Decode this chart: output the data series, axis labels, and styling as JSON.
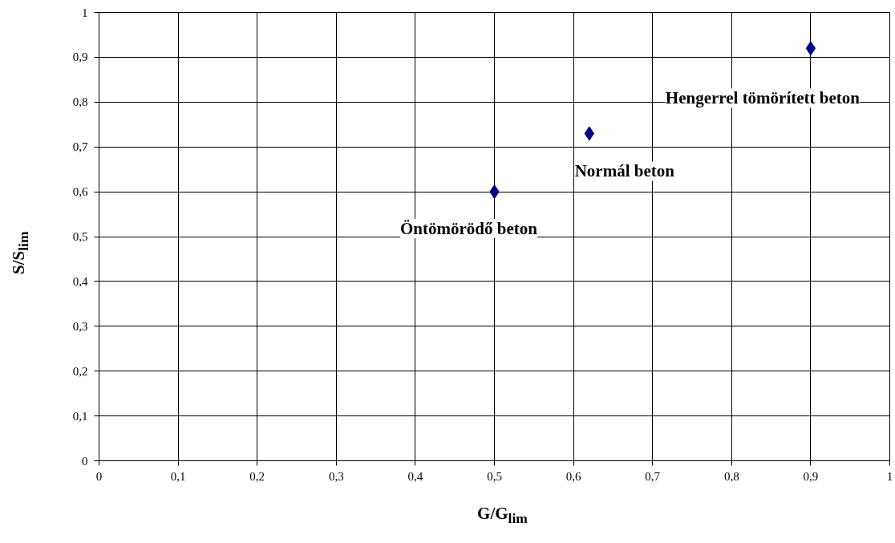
{
  "chart_data": {
    "type": "scatter",
    "xlabel": "G/G$_{lim}$",
    "ylabel": "S/S$_{lim}$",
    "x": [
      0.5,
      0.62,
      0.9
    ],
    "series": [
      {
        "color": "#000080",
        "values": [
          0.6,
          0.73,
          0.92
        ]
      }
    ],
    "marker": "diamond",
    "grid": true,
    "xlim": [
      0,
      1
    ],
    "ylim": [
      0,
      1
    ],
    "xticks": [
      0,
      {
        "value": 0.1,
        "label": "0,1"
      },
      {
        "value": 0.2,
        "label": "0,2"
      },
      {
        "value": 0.3,
        "label": "0,3"
      },
      {
        "value": 0.4,
        "label": "0,4"
      },
      {
        "value": 0.5,
        "label": "0,5"
      },
      {
        "value": 0.6,
        "label": "0,6"
      },
      {
        "value": 0.7,
        "label": "0,7"
      },
      {
        "value": 0.8,
        "label": "0,8"
      },
      {
        "value": 0.9,
        "label": "0,9"
      },
      1
    ],
    "yticks": [
      0,
      {
        "value": 0.1,
        "label": "0,1"
      },
      {
        "value": 0.2,
        "label": "0,2"
      },
      {
        "value": 0.3,
        "label": "0,3"
      },
      {
        "value": 0.4,
        "label": "0,4"
      },
      {
        "value": 0.5,
        "label": "0,5"
      },
      {
        "value": 0.6,
        "label": "0,6"
      },
      {
        "value": 0.7,
        "label": "0,7"
      },
      {
        "value": 0.8,
        "label": "0,8"
      },
      {
        "value": 0.9,
        "label": "0,9"
      },
      1
    ],
    "annotations": [
      {
        "text": "Öntömörödő beton",
        "x": 0.5,
        "y": 0.6
      },
      {
        "text": "Normál beton",
        "x": 0.62,
        "y": 0.73
      },
      {
        "text": "Hengerrel tömörített beton",
        "x": 0.9,
        "y": 0.92
      }
    ]
  }
}
